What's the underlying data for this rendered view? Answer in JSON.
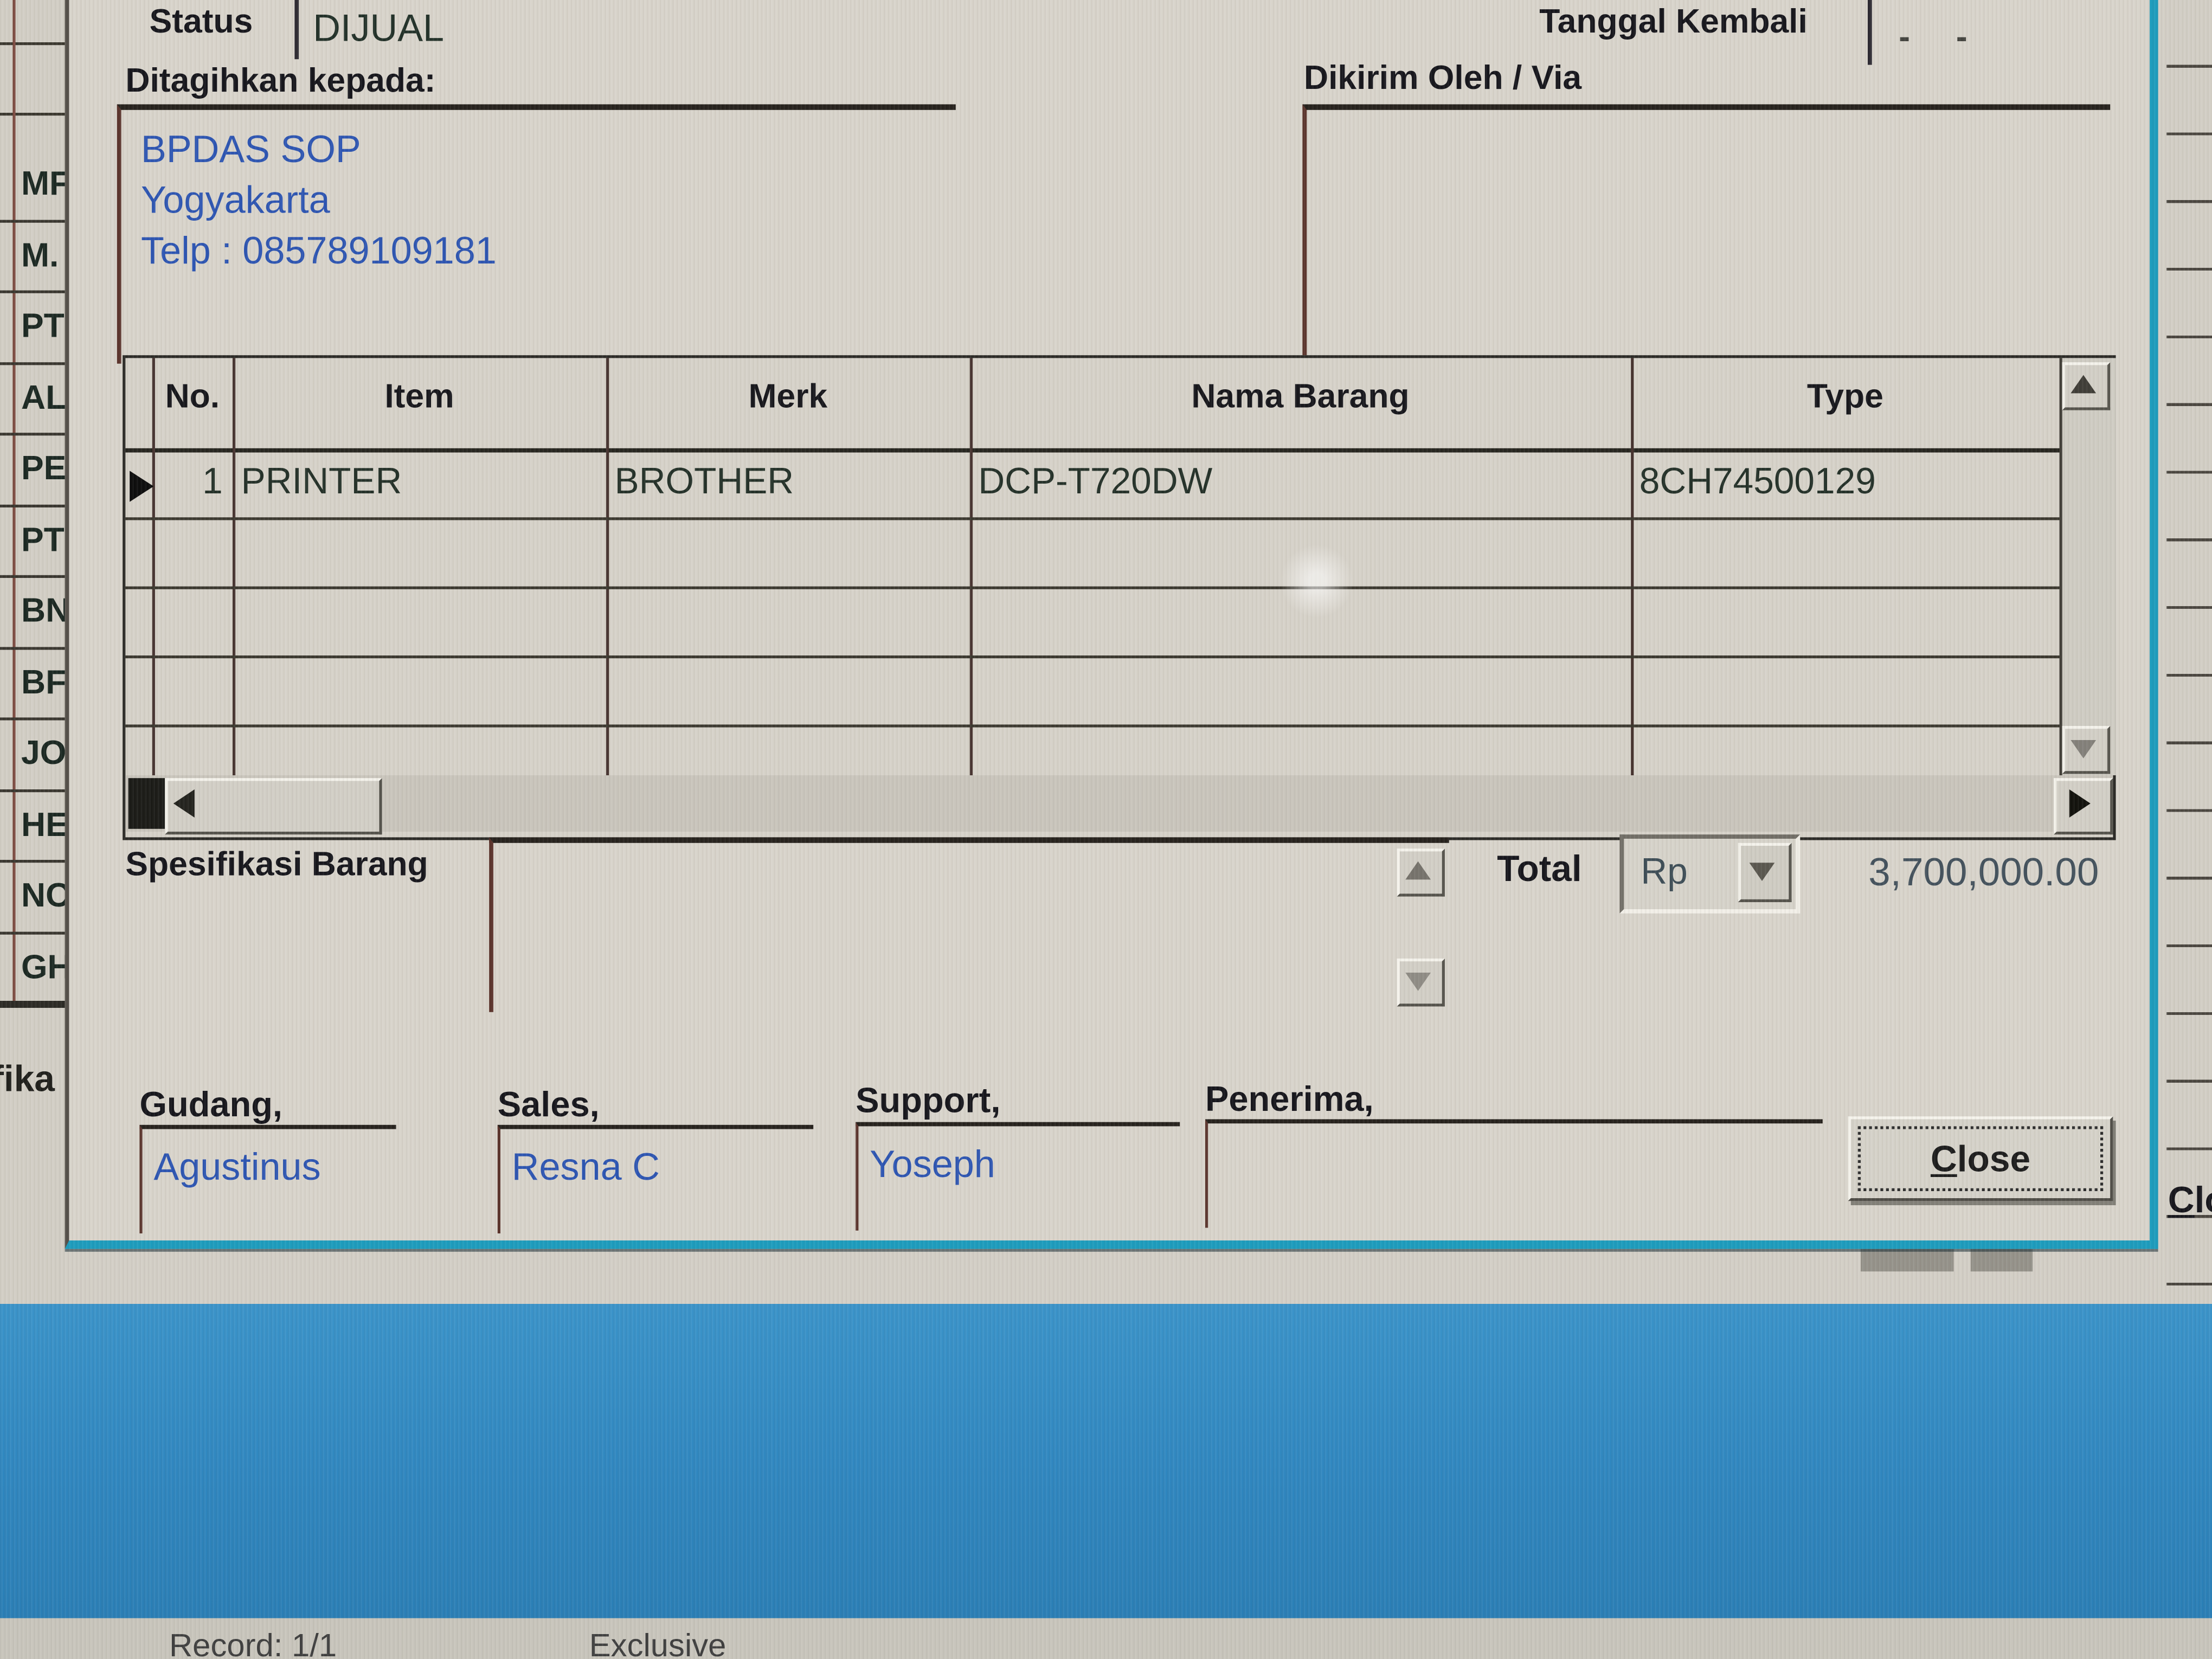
{
  "form": {
    "status_label": "Status",
    "status_value": "DIJUAL",
    "tanggal_kembali_label": "Tanggal Kembali",
    "tanggal_kembali_value": "- -",
    "billed_to_label": "Ditagihkan kepada:",
    "billed_to_lines": [
      "BPDAS SOP",
      "Yogyakarta",
      "Telp : 085789109181"
    ],
    "shipped_label": "Dikirim Oleh / Via"
  },
  "grid": {
    "columns": [
      "No.",
      "Item",
      "Merk",
      "Nama Barang",
      "Type"
    ],
    "rows": [
      {
        "no": "1",
        "item": "PRINTER",
        "merk": "BROTHER",
        "nama": "DCP-T720DW",
        "type": "8CH74500129"
      }
    ],
    "empty_row_count": 4
  },
  "spec": {
    "label": "Spesifikasi Barang",
    "value": ""
  },
  "total": {
    "label": "Total",
    "currency": "Rp",
    "value": "3,700,000.00"
  },
  "signatures": [
    {
      "label": "Gudang,",
      "value": "Agustinus"
    },
    {
      "label": "Sales,",
      "value": "Resna C"
    },
    {
      "label": "Support,",
      "value": "Yoseph"
    },
    {
      "label": "Penerima,",
      "value": ""
    }
  ],
  "close_button": {
    "underlined": "C",
    "rest": "lose"
  },
  "background_window": {
    "partial_row_labels": [
      "MF",
      "M.",
      "PT",
      "AL",
      "PE",
      "PT",
      "BN",
      "BF",
      "JO",
      "HE",
      "NC",
      "GH"
    ],
    "partial_label": "fika",
    "partial_close_button": {
      "underlined": "C",
      "rest": "los"
    }
  },
  "statusbar": {
    "record": "Record: 1/1",
    "mode": "Exclusive"
  },
  "colors": {
    "dialog_face": "#d8d4cb",
    "accent_teal_border": "#1d9cbd",
    "data_blue": "#2d55b2",
    "band_blue": "#2f86bf",
    "statusbar_gray": "#c8c5bc"
  }
}
